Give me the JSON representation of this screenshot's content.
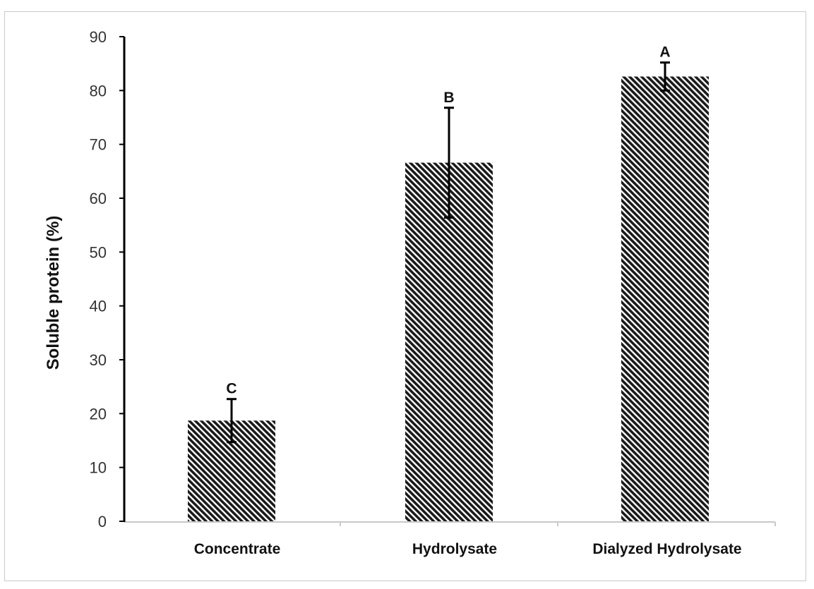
{
  "chart_data": {
    "type": "bar",
    "ylabel": "Soluble protein (%)",
    "xlabel": "",
    "ylim": [
      0,
      90
    ],
    "yticks": [
      "0",
      "10",
      "20",
      "30",
      "40",
      "50",
      "60",
      "70",
      "80",
      "90"
    ],
    "categories": [
      "Concentrate",
      "Hydrolysate",
      "Dialyzed Hydrolysate"
    ],
    "values": [
      18.7,
      66.6,
      82.6
    ],
    "error_plus": [
      4.0,
      10.2,
      2.6
    ],
    "error_minus": [
      4.0,
      10.2,
      2.6
    ],
    "significance_labels": [
      "C",
      "B",
      "A"
    ],
    "grid": false,
    "legend": "none",
    "bar_fill": "diagonal-hatch",
    "colors": {
      "hatch": "#1a1a1a",
      "bar_background": "#ffffff",
      "axis": "#000000",
      "x_axis": "#c8c8c8",
      "error_bar": "#000000",
      "frame": "#c9c9c9"
    }
  }
}
